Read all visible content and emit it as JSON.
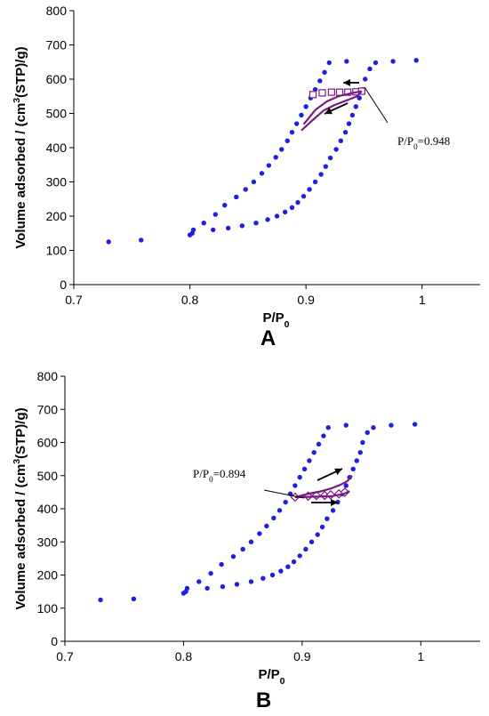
{
  "colors": {
    "points": "#1f1fe0",
    "model": "#7a1a82",
    "axis": "#000000"
  },
  "chart_data": [
    {
      "type": "scatter",
      "panel_label": "A",
      "xlabel": "P/P0",
      "ylabel": "Volume adsorbed / (cm3(STP)/g)",
      "xlim": [
        0.7,
        1.05
      ],
      "ylim": [
        0,
        800
      ],
      "xticks": [
        0.7,
        0.8,
        0.9,
        1
      ],
      "xtick_labels": [
        "0.7",
        "0.8",
        "0.9",
        "1"
      ],
      "yticks": [
        0,
        100,
        200,
        300,
        400,
        500,
        600,
        700,
        800
      ],
      "grid": false,
      "annotation": {
        "text": "P/P0=0.948",
        "x": 0.948,
        "y": 565
      },
      "series": [
        {
          "role": "adsorption-branch",
          "marker": "circle",
          "x": [
            0.73,
            0.758,
            0.8,
            0.802,
            0.82,
            0.833,
            0.845,
            0.857,
            0.867,
            0.875,
            0.882,
            0.888,
            0.893,
            0.898,
            0.903,
            0.908,
            0.913,
            0.917,
            0.921,
            0.926,
            0.93,
            0.934,
            0.937,
            0.94,
            0.943,
            0.946,
            0.949,
            0.951,
            0.955,
            0.96,
            0.975,
            0.995
          ],
          "y": [
            125,
            130,
            145,
            150,
            160,
            165,
            172,
            180,
            190,
            200,
            212,
            225,
            240,
            258,
            278,
            300,
            322,
            345,
            370,
            395,
            420,
            445,
            470,
            495,
            520,
            545,
            570,
            600,
            630,
            648,
            652,
            655
          ]
        },
        {
          "role": "desorption-branch",
          "marker": "circle",
          "x": [
            0.935,
            0.92,
            0.916,
            0.912,
            0.908,
            0.904,
            0.9,
            0.896,
            0.892,
            0.888,
            0.884,
            0.879,
            0.874,
            0.868,
            0.862,
            0.855,
            0.848,
            0.84,
            0.83,
            0.822,
            0.812,
            0.803
          ],
          "y": [
            652,
            648,
            620,
            595,
            570,
            545,
            520,
            495,
            470,
            445,
            420,
            395,
            372,
            348,
            325,
            300,
            278,
            256,
            232,
            205,
            180,
            160
          ]
        },
        {
          "role": "scanning-points",
          "marker": "open-square",
          "x": [
            0.906,
            0.914,
            0.922,
            0.929,
            0.936,
            0.943,
            0.948
          ],
          "y": [
            555,
            560,
            562,
            562,
            562,
            563,
            565
          ]
        },
        {
          "role": "scanning-model-upper",
          "marker": "line",
          "x": [
            0.898,
            0.908,
            0.918,
            0.928,
            0.938,
            0.948
          ],
          "y": [
            468,
            510,
            535,
            550,
            558,
            565
          ]
        },
        {
          "role": "scanning-model-lower",
          "marker": "line",
          "x": [
            0.896,
            0.905,
            0.915,
            0.925,
            0.935,
            0.944,
            0.948
          ],
          "y": [
            450,
            478,
            508,
            525,
            538,
            550,
            565
          ]
        }
      ]
    },
    {
      "type": "scatter",
      "panel_label": "B",
      "xlabel": "P/P0",
      "ylabel": "Volume adsorbed / (cm3(STP)/g)",
      "xlim": [
        0.7,
        1.05
      ],
      "ylim": [
        0,
        800
      ],
      "xticks": [
        0.7,
        0.8,
        0.9,
        1
      ],
      "xtick_labels": [
        "0.7",
        "0.8",
        "0.9",
        "1"
      ],
      "yticks": [
        0,
        100,
        200,
        300,
        400,
        500,
        600,
        700,
        800
      ],
      "grid": false,
      "annotation": {
        "text": "P/P0=0.894",
        "x": 0.894,
        "y": 435
      },
      "series": [
        {
          "role": "adsorption-branch",
          "marker": "circle",
          "x": [
            0.73,
            0.758,
            0.8,
            0.802,
            0.82,
            0.833,
            0.845,
            0.857,
            0.867,
            0.875,
            0.882,
            0.888,
            0.893,
            0.898,
            0.903,
            0.908,
            0.913,
            0.917,
            0.921,
            0.926,
            0.93,
            0.934,
            0.937,
            0.94,
            0.943,
            0.946,
            0.949,
            0.951,
            0.955,
            0.96,
            0.975,
            0.995
          ],
          "y": [
            125,
            128,
            145,
            150,
            160,
            165,
            172,
            180,
            190,
            200,
            212,
            225,
            240,
            258,
            278,
            300,
            322,
            345,
            370,
            395,
            420,
            445,
            470,
            495,
            520,
            545,
            570,
            600,
            630,
            645,
            652,
            655
          ]
        },
        {
          "role": "desorption-branch",
          "marker": "circle",
          "x": [
            0.937,
            0.922,
            0.918,
            0.914,
            0.91,
            0.906,
            0.902,
            0.898,
            0.894,
            0.89,
            0.886,
            0.881,
            0.876,
            0.87,
            0.864,
            0.857,
            0.85,
            0.842,
            0.832,
            0.823,
            0.813,
            0.803
          ],
          "y": [
            652,
            645,
            620,
            595,
            570,
            545,
            520,
            495,
            470,
            445,
            420,
            395,
            372,
            348,
            325,
            300,
            278,
            256,
            232,
            205,
            180,
            160
          ]
        },
        {
          "role": "scanning-points",
          "marker": "open-diamond",
          "x": [
            0.894,
            0.905,
            0.912,
            0.919,
            0.924,
            0.931,
            0.936
          ],
          "y": [
            435,
            438,
            440,
            440,
            442,
            445,
            450
          ]
        },
        {
          "role": "scanning-model-upper",
          "marker": "line",
          "x": [
            0.894,
            0.905,
            0.915,
            0.925,
            0.932,
            0.938,
            0.942
          ],
          "y": [
            435,
            445,
            452,
            462,
            472,
            483,
            500
          ]
        },
        {
          "role": "scanning-model-lower",
          "marker": "line",
          "x": [
            0.894,
            0.905,
            0.915,
            0.925,
            0.935,
            0.94
          ],
          "y": [
            435,
            436,
            437,
            438,
            445,
            453
          ]
        }
      ]
    }
  ]
}
